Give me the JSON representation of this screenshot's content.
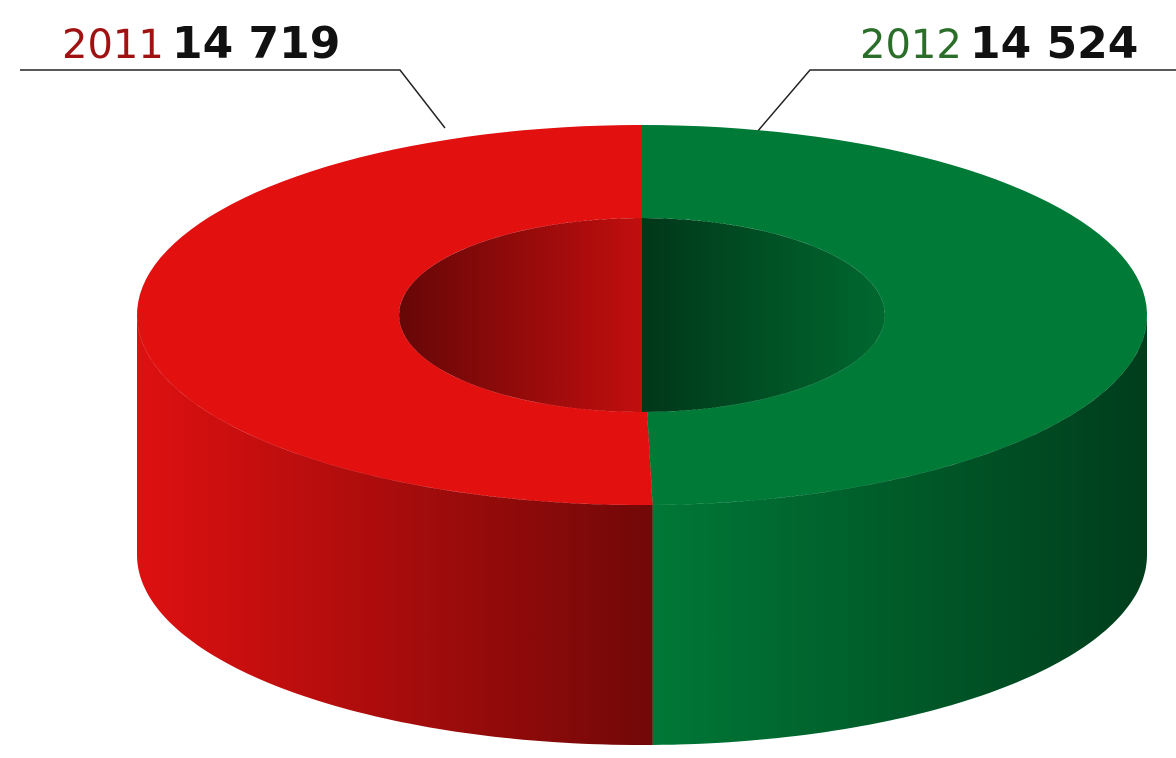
{
  "chart_data": {
    "type": "pie",
    "donut": true,
    "categories": [
      "2011",
      "2012"
    ],
    "values": [
      14719,
      14524
    ],
    "value_labels": [
      "14 719",
      "14 524"
    ],
    "colors": [
      "#e31010",
      "#007a37"
    ]
  }
}
